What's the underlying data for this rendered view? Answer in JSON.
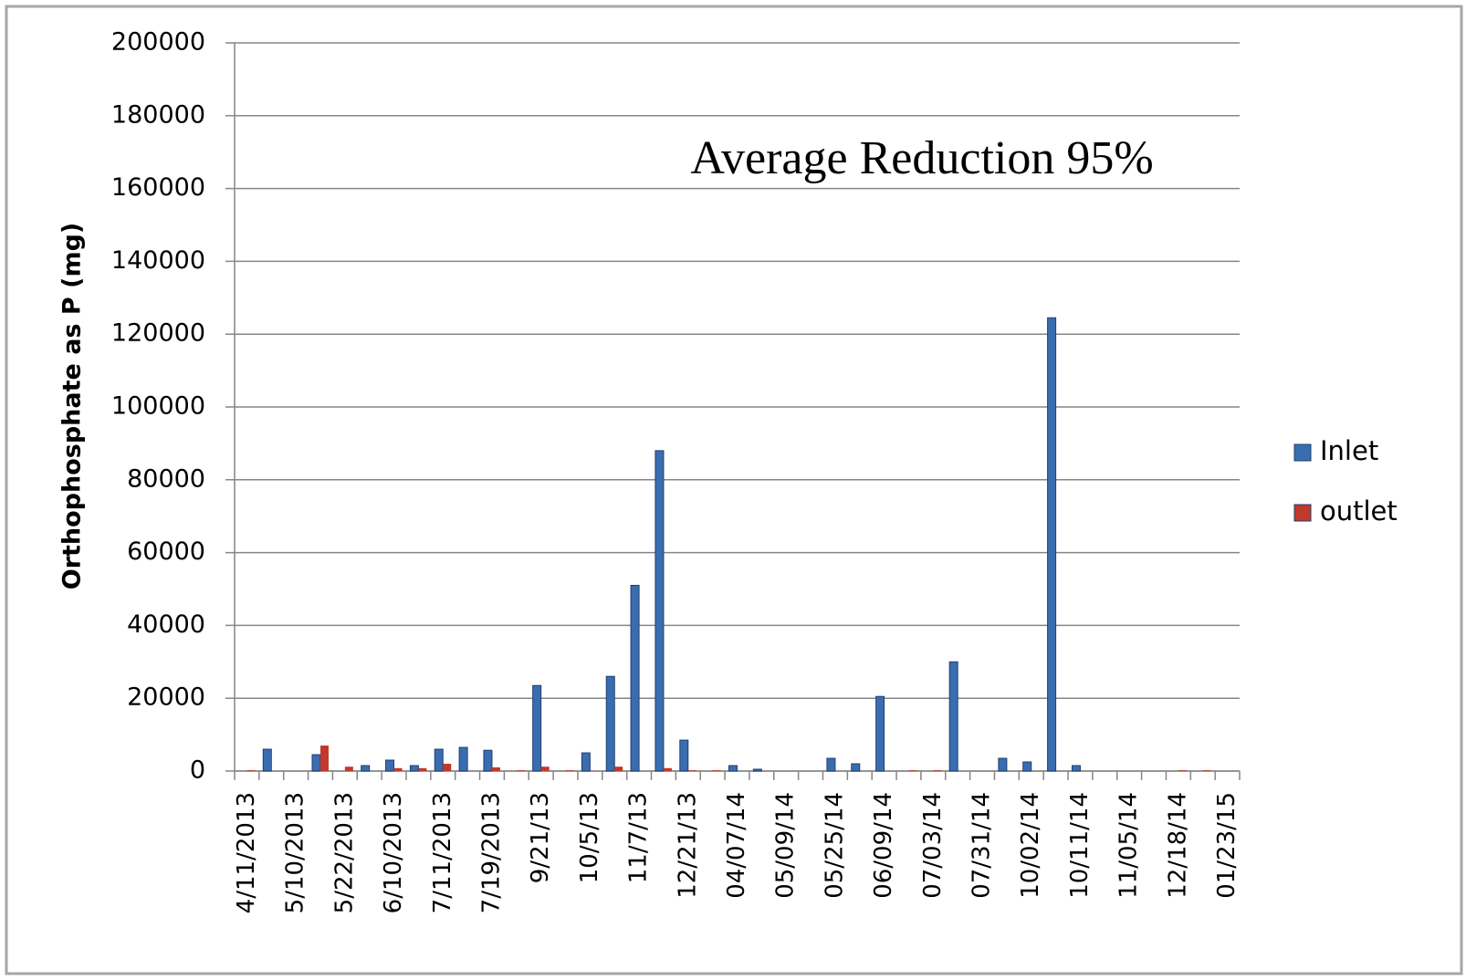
{
  "chart_data": {
    "type": "bar",
    "annotation": "Average Reduction 95%",
    "y_label": "Orthophosphate as P (mg)",
    "categories": [
      "4/11/2013",
      null,
      "5/10/2013",
      null,
      "5/22/2013",
      null,
      "6/10/2013",
      null,
      "7/11/2013",
      null,
      "7/19/2013",
      null,
      "9/21/13",
      null,
      "10/5/13",
      null,
      "11/7/13",
      null,
      "12/21/13",
      null,
      "04/07/14",
      null,
      "05/09/14",
      null,
      "05/25/14",
      null,
      "06/09/14",
      null,
      "07/03/14",
      null,
      "07/31/14",
      null,
      "10/02/14",
      null,
      "10/11/14",
      null,
      "11/05/14",
      null,
      "12/18/14",
      null,
      "01/23/15"
    ],
    "series": [
      {
        "name": "Inlet",
        "color": "#3a6db0",
        "values": [
          0,
          6000,
          0,
          4500,
          0,
          1500,
          3000,
          1500,
          6000,
          6500,
          5700,
          0,
          23500,
          0,
          5000,
          26000,
          51000,
          88000,
          8500,
          0,
          1500,
          500,
          0,
          0,
          3500,
          2000,
          20500,
          0,
          0,
          30000,
          0,
          3500,
          2500,
          124500,
          1500,
          0,
          0,
          0,
          0,
          0,
          0
        ]
      },
      {
        "name": "outlet",
        "color": "#c0392b",
        "values": [
          200,
          0,
          0,
          7000,
          1200,
          0,
          800,
          800,
          2000,
          0,
          1000,
          200,
          1200,
          200,
          0,
          1200,
          0,
          800,
          200,
          200,
          0,
          0,
          0,
          0,
          0,
          0,
          0,
          200,
          200,
          0,
          0,
          0,
          0,
          0,
          0,
          0,
          0,
          0,
          200,
          200,
          0
        ]
      }
    ],
    "ylim": [
      0,
      200000
    ],
    "yticks": [
      0,
      20000,
      40000,
      60000,
      80000,
      100000,
      120000,
      140000,
      160000,
      180000,
      200000
    ],
    "grid": true,
    "legend": "right"
  }
}
